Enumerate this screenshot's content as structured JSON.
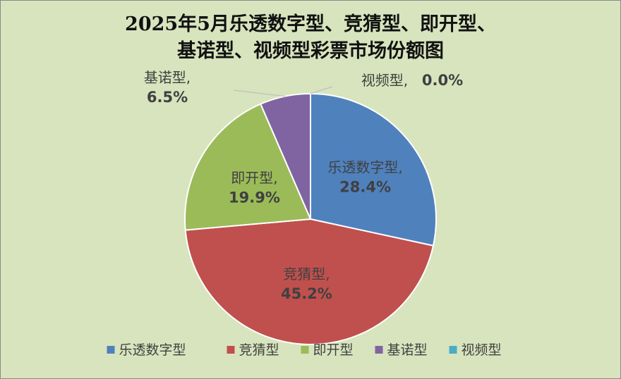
{
  "chart_data": {
    "type": "pie",
    "title_lines": [
      "2025年5月乐透数字型、竞猜型、即开型、",
      "基诺型、视频型彩票市场份额图"
    ],
    "slices": [
      {
        "name": "乐透数字型",
        "value": 28.4,
        "label": "28.4%",
        "color": "#4f81bd"
      },
      {
        "name": "竞猜型",
        "value": 45.2,
        "label": "45.2%",
        "color": "#c0504d"
      },
      {
        "name": "即开型",
        "value": 19.9,
        "label": "19.9%",
        "color": "#9bbb59"
      },
      {
        "name": "基诺型",
        "value": 6.5,
        "label": "6.5%",
        "color": "#8064a2"
      },
      {
        "name": "视频型",
        "value": 0.0,
        "label": "0.0%",
        "color": "#4bacc6"
      }
    ],
    "legend_position": "bottom",
    "background": "#d7e4bd"
  }
}
